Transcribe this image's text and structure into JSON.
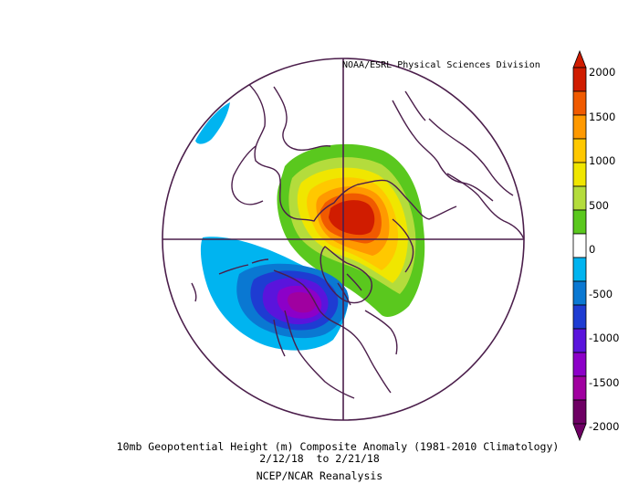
{
  "map": {
    "credit": "NOAA/ESRL Physical Sciences Division",
    "title_line1": "10mb Geopotential Height (m) Composite Anomaly (1981-2010 Climatology)",
    "title_line2": "2/12/18  to 2/21/18",
    "source": "NCEP/NCAR Reanalysis",
    "projection": "north-polar-stereographic"
  },
  "colorbar": {
    "labels": [
      "2000",
      "1500",
      "1000",
      "500",
      "0",
      "-500",
      "-1000",
      "-1500",
      "-2000"
    ],
    "colors": [
      "#d01c00",
      "#f05a00",
      "#ff9900",
      "#ffc800",
      "#f0e600",
      "#b4dc3c",
      "#5ac81e",
      "#ffffff",
      "#00b4f0",
      "#0a78d2",
      "#1e3cd2",
      "#5a14dc",
      "#8c00c8",
      "#a000a0",
      "#6e0064"
    ]
  },
  "anomalies": {
    "positive_center": "Arctic / northern Eurasia",
    "negative_center": "North Pacific / Alaska"
  }
}
